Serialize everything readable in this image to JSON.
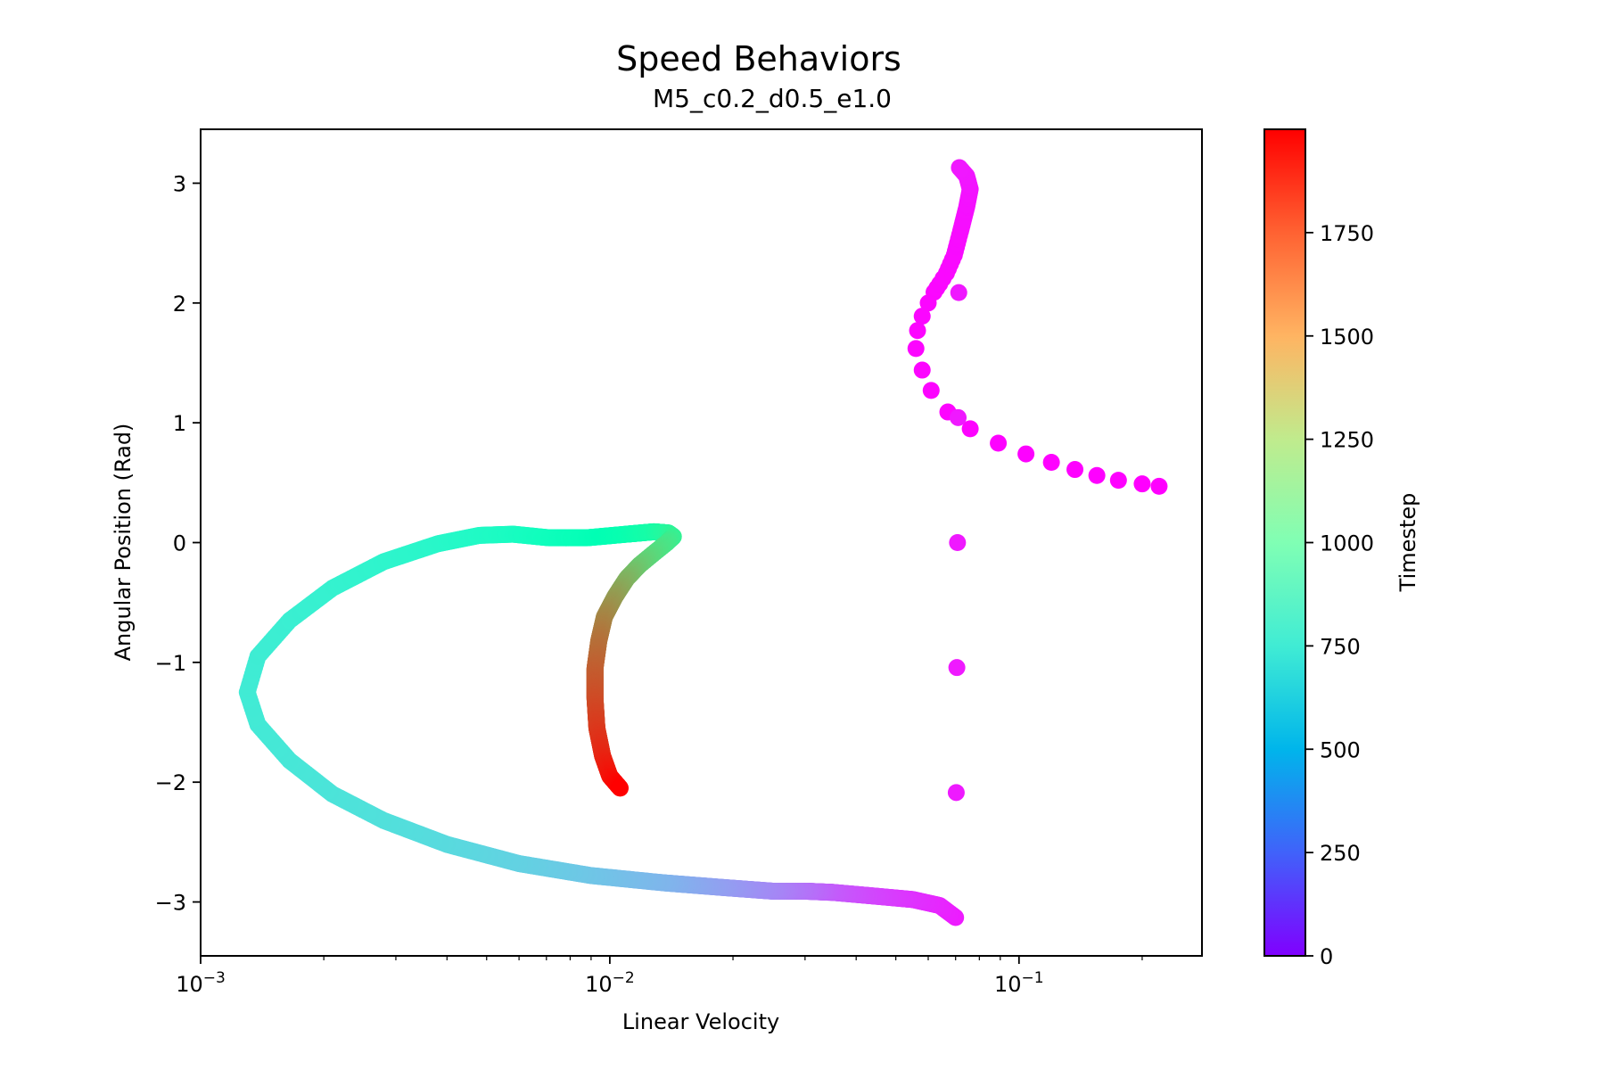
{
  "chart_data": {
    "type": "scatter",
    "title": "Speed Behaviors",
    "subtitle": "M5_c0.2_d0.5_e1.0",
    "xlabel": "Linear Velocity",
    "ylabel": "Angular Position (Rad)",
    "x_scale": "log",
    "xlim": [
      0.001,
      0.28
    ],
    "ylim": [
      -3.45,
      3.45
    ],
    "x_ticks": [
      {
        "value": 0.001,
        "base": "10",
        "exp": "−3"
      },
      {
        "value": 0.01,
        "base": "10",
        "exp": "−2"
      },
      {
        "value": 0.1,
        "base": "10",
        "exp": "−1"
      }
    ],
    "y_ticks": [
      {
        "value": -3,
        "label": "−3"
      },
      {
        "value": -2,
        "label": "−2"
      },
      {
        "value": -1,
        "label": "−1"
      },
      {
        "value": 0,
        "label": "0"
      },
      {
        "value": 1,
        "label": "1"
      },
      {
        "value": 2,
        "label": "2"
      },
      {
        "value": 3,
        "label": "3"
      }
    ],
    "grid": false,
    "colorbar": {
      "label": "Timestep",
      "colormap": "rainbow",
      "range": [
        0,
        2000
      ],
      "ticks": [
        {
          "value": 0,
          "label": "0"
        },
        {
          "value": 250,
          "label": "250"
        },
        {
          "value": 500,
          "label": "500"
        },
        {
          "value": 750,
          "label": "750"
        },
        {
          "value": 1000,
          "label": "1000"
        },
        {
          "value": 1250,
          "label": "1250"
        },
        {
          "value": 1500,
          "label": "1500"
        },
        {
          "value": 1750,
          "label": "1750"
        }
      ]
    },
    "series": [
      {
        "points": [
          {
            "t": 0,
            "x": 0.22,
            "y": 0.47
          },
          {
            "t": 1,
            "x": 0.2,
            "y": 0.49
          },
          {
            "t": 2,
            "x": 0.175,
            "y": 0.52
          },
          {
            "t": 3,
            "x": 0.155,
            "y": 0.56
          },
          {
            "t": 4,
            "x": 0.137,
            "y": 0.61
          },
          {
            "t": 5,
            "x": 0.12,
            "y": 0.67
          },
          {
            "t": 6,
            "x": 0.104,
            "y": 0.74
          },
          {
            "t": 7,
            "x": 0.089,
            "y": 0.83
          },
          {
            "t": 8,
            "x": 0.076,
            "y": 0.95
          },
          {
            "t": 9,
            "x": 0.067,
            "y": 1.09
          },
          {
            "t": 10,
            "x": 0.061,
            "y": 1.27
          },
          {
            "t": 11,
            "x": 0.058,
            "y": 1.44
          },
          {
            "t": 12,
            "x": 0.056,
            "y": 1.62
          },
          {
            "t": 13,
            "x": 0.0565,
            "y": 1.77
          },
          {
            "t": 14,
            "x": 0.058,
            "y": 1.89
          },
          {
            "t": 15,
            "x": 0.06,
            "y": 2.0
          },
          {
            "t": 16,
            "x": 0.062,
            "y": 2.09
          },
          {
            "t": 18,
            "x": 0.064,
            "y": 2.16
          },
          {
            "t": 20,
            "x": 0.0665,
            "y": 2.25
          },
          {
            "t": 24,
            "x": 0.0695,
            "y": 2.4
          },
          {
            "t": 30,
            "x": 0.072,
            "y": 2.6
          },
          {
            "t": 38,
            "x": 0.0745,
            "y": 2.8
          },
          {
            "t": 46,
            "x": 0.076,
            "y": 2.95
          },
          {
            "t": 54,
            "x": 0.0745,
            "y": 3.06
          },
          {
            "t": 60,
            "x": 0.0715,
            "y": 3.13
          },
          {
            "t": 66,
            "x": 0.07,
            "y": -3.13
          },
          {
            "t": 90,
            "x": 0.064,
            "y": -3.03
          },
          {
            "t": 120,
            "x": 0.055,
            "y": -2.98
          },
          {
            "t": 170,
            "x": 0.044,
            "y": -2.95
          },
          {
            "t": 230,
            "x": 0.035,
            "y": -2.92
          },
          {
            "t": 290,
            "x": 0.03,
            "y": -2.91
          },
          {
            "t": 350,
            "x": 0.025,
            "y": -2.91
          },
          {
            "t": 420,
            "x": 0.019,
            "y": -2.88
          },
          {
            "t": 500,
            "x": 0.0135,
            "y": -2.84
          },
          {
            "t": 560,
            "x": 0.009,
            "y": -2.78
          },
          {
            "t": 610,
            "x": 0.006,
            "y": -2.68
          },
          {
            "t": 650,
            "x": 0.004,
            "y": -2.52
          },
          {
            "t": 680,
            "x": 0.0028,
            "y": -2.32
          },
          {
            "t": 700,
            "x": 0.0021,
            "y": -2.1
          },
          {
            "t": 720,
            "x": 0.00165,
            "y": -1.82
          },
          {
            "t": 735,
            "x": 0.00138,
            "y": -1.52
          },
          {
            "t": 745,
            "x": 0.0013,
            "y": -1.25
          },
          {
            "t": 755,
            "x": 0.00138,
            "y": -0.95
          },
          {
            "t": 770,
            "x": 0.00165,
            "y": -0.65
          },
          {
            "t": 790,
            "x": 0.0021,
            "y": -0.38
          },
          {
            "t": 815,
            "x": 0.0028,
            "y": -0.16
          },
          {
            "t": 840,
            "x": 0.0038,
            "y": -0.01
          },
          {
            "t": 870,
            "x": 0.0048,
            "y": 0.06
          },
          {
            "t": 900,
            "x": 0.0058,
            "y": 0.07
          },
          {
            "t": 940,
            "x": 0.0071,
            "y": 0.04
          },
          {
            "t": 980,
            "x": 0.0088,
            "y": 0.04
          },
          {
            "t": 1030,
            "x": 0.011,
            "y": 0.07
          },
          {
            "t": 1090,
            "x": 0.0128,
            "y": 0.09
          },
          {
            "t": 1150,
            "x": 0.0139,
            "y": 0.08
          },
          {
            "t": 1200,
            "x": 0.0143,
            "y": 0.05
          },
          {
            "t": 1260,
            "x": 0.0138,
            "y": 0.0
          },
          {
            "t": 1330,
            "x": 0.0128,
            "y": -0.09
          },
          {
            "t": 1410,
            "x": 0.0118,
            "y": -0.19
          },
          {
            "t": 1490,
            "x": 0.011,
            "y": -0.3
          },
          {
            "t": 1570,
            "x": 0.0103,
            "y": -0.45
          },
          {
            "t": 1640,
            "x": 0.0097,
            "y": -0.62
          },
          {
            "t": 1700,
            "x": 0.0094,
            "y": -0.82
          },
          {
            "t": 1750,
            "x": 0.0092,
            "y": -1.05
          },
          {
            "t": 1800,
            "x": 0.0092,
            "y": -1.3
          },
          {
            "t": 1850,
            "x": 0.0093,
            "y": -1.55
          },
          {
            "t": 1900,
            "x": 0.0096,
            "y": -1.78
          },
          {
            "t": 1950,
            "x": 0.01,
            "y": -1.95
          },
          {
            "t": 1999,
            "x": 0.0106,
            "y": -2.05
          }
        ]
      }
    ]
  }
}
